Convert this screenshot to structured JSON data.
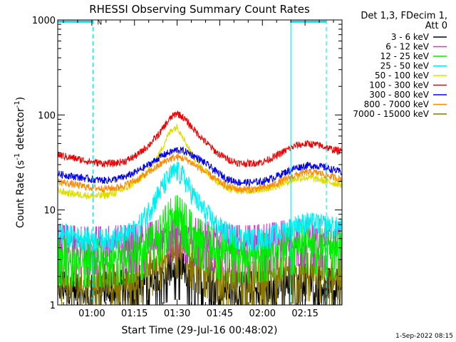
{
  "chart_data": {
    "type": "line",
    "title": "RHESSI Observing Summary Count Rates",
    "xlabel": "Start Time (29-Jul-16 00:48:02)",
    "ylabel": "Count Rate (s-1 detector-1)",
    "ylabel_parts": {
      "pre": "Count Rate (s",
      "sup1": "-1",
      "mid": " detector",
      "sup2": "-1",
      "post": ")"
    },
    "yscale": "log",
    "ylim": [
      1,
      1000
    ],
    "xlim_minutes_after_0048": [
      0,
      100
    ],
    "x_tick_labels": [
      "01:00",
      "01:15",
      "01:30",
      "01:45",
      "02:00",
      "02:15"
    ],
    "x_tick_minutes": [
      12,
      27,
      42,
      57,
      72,
      87
    ],
    "y_tick_labels": [
      "1",
      "10",
      "100",
      "1000"
    ],
    "y_tick_values": [
      1,
      10,
      100,
      1000
    ],
    "legend_header": [
      "Det 1,3, FDecim 1,",
      "Att 0"
    ],
    "legend_position": "right",
    "footer": "1-Sep-2022 08:15",
    "flag_label": "N",
    "flags": [
      {
        "start": 0,
        "end": 12.4,
        "level": 960
      },
      {
        "start": 82,
        "end": 94.5,
        "level": 960
      }
    ],
    "x": [
      0,
      4,
      8,
      12,
      16,
      20,
      24,
      28,
      32,
      36,
      38,
      40,
      42,
      44,
      46,
      48,
      52,
      56,
      60,
      64,
      68,
      72,
      76,
      80,
      84,
      88,
      92,
      96,
      100
    ],
    "series": [
      {
        "name": "3 - 6 keV",
        "color": "#000000",
        "values": [
          1.4,
          1.4,
          1.3,
          1.3,
          1.4,
          1.4,
          1.5,
          1.6,
          1.8,
          2.0,
          2.1,
          2.2,
          2.3,
          2.2,
          2.0,
          1.9,
          1.7,
          1.5,
          1.4,
          1.4,
          1.4,
          1.4,
          1.5,
          1.6,
          1.7,
          1.7,
          1.6,
          1.5,
          1.5
        ]
      },
      {
        "name": "6 - 12 keV",
        "color": "#cc33cc",
        "values": [
          4.3,
          4.3,
          4.2,
          4.2,
          4.2,
          4.3,
          4.3,
          4.4,
          4.6,
          5.0,
          5.3,
          5.6,
          6.0,
          5.8,
          5.5,
          5.2,
          4.8,
          4.5,
          4.4,
          4.3,
          4.3,
          4.4,
          4.6,
          4.9,
          5.1,
          5.2,
          5.0,
          4.8,
          4.6
        ]
      },
      {
        "name": "12 - 25 keV",
        "color": "#00ee00",
        "values": [
          3.2,
          3.2,
          3.1,
          3.1,
          3.1,
          3.2,
          3.3,
          3.5,
          4.0,
          5.5,
          7.0,
          8.5,
          9.0,
          8.0,
          6.5,
          5.5,
          4.5,
          3.8,
          3.5,
          3.4,
          3.4,
          3.5,
          3.7,
          4.0,
          4.3,
          4.4,
          4.1,
          3.8,
          3.6
        ]
      },
      {
        "name": "25 - 50 keV",
        "color": "#00eeee",
        "values": [
          6.0,
          5.5,
          5.2,
          5.0,
          5.0,
          5.1,
          5.5,
          6.5,
          10.0,
          16.0,
          20.0,
          24.0,
          26.0,
          23.0,
          18.0,
          14.0,
          9.5,
          7.0,
          5.8,
          5.2,
          5.0,
          5.1,
          5.5,
          6.2,
          7.0,
          7.5,
          7.2,
          6.8,
          6.5
        ]
      },
      {
        "name": "50 - 100 keV",
        "color": "#dddd00",
        "values": [
          16,
          15,
          14.5,
          14,
          14.2,
          15,
          17,
          20,
          26,
          40,
          55,
          70,
          75,
          60,
          45,
          35,
          26,
          20,
          17,
          16,
          16,
          16.5,
          17.5,
          19.5,
          21.5,
          22,
          21,
          19.5,
          18.5
        ]
      },
      {
        "name": "100 - 300 keV",
        "color": "#ee0000",
        "values": [
          38,
          36,
          34,
          32,
          31,
          31,
          33,
          38,
          48,
          65,
          80,
          95,
          105,
          95,
          82,
          70,
          52,
          40,
          34,
          31,
          31,
          32,
          36,
          42,
          48,
          50,
          48,
          44,
          41
        ]
      },
      {
        "name": "300 - 800 keV",
        "color": "#0000ee",
        "values": [
          24,
          23,
          22,
          21,
          20.5,
          21,
          22.5,
          25.5,
          30,
          36,
          39,
          41,
          43,
          42,
          40,
          37,
          31,
          25,
          21,
          19.5,
          19.5,
          20,
          22,
          25,
          28,
          29.5,
          29,
          27,
          25
        ]
      },
      {
        "name": "800 - 7000 keV",
        "color": "#ff8800",
        "values": [
          20,
          19,
          18,
          17.2,
          16.8,
          17,
          18.5,
          21,
          25,
          30,
          33,
          35,
          36,
          35,
          33,
          30,
          25,
          20.5,
          17.5,
          16.5,
          16.5,
          17,
          18.5,
          21,
          23.5,
          25,
          24.5,
          22.5,
          21
        ]
      },
      {
        "name": "7000 - 15000 keV",
        "color": "#887700",
        "values": [
          1.7,
          1.7,
          1.6,
          1.6,
          1.7,
          1.7,
          1.8,
          2.0,
          2.3,
          2.9,
          3.4,
          3.8,
          4.0,
          3.7,
          3.2,
          2.8,
          2.4,
          2.1,
          1.9,
          1.8,
          1.8,
          1.8,
          1.9,
          2.0,
          2.1,
          2.2,
          2.1,
          2.0,
          1.9
        ]
      }
    ]
  }
}
